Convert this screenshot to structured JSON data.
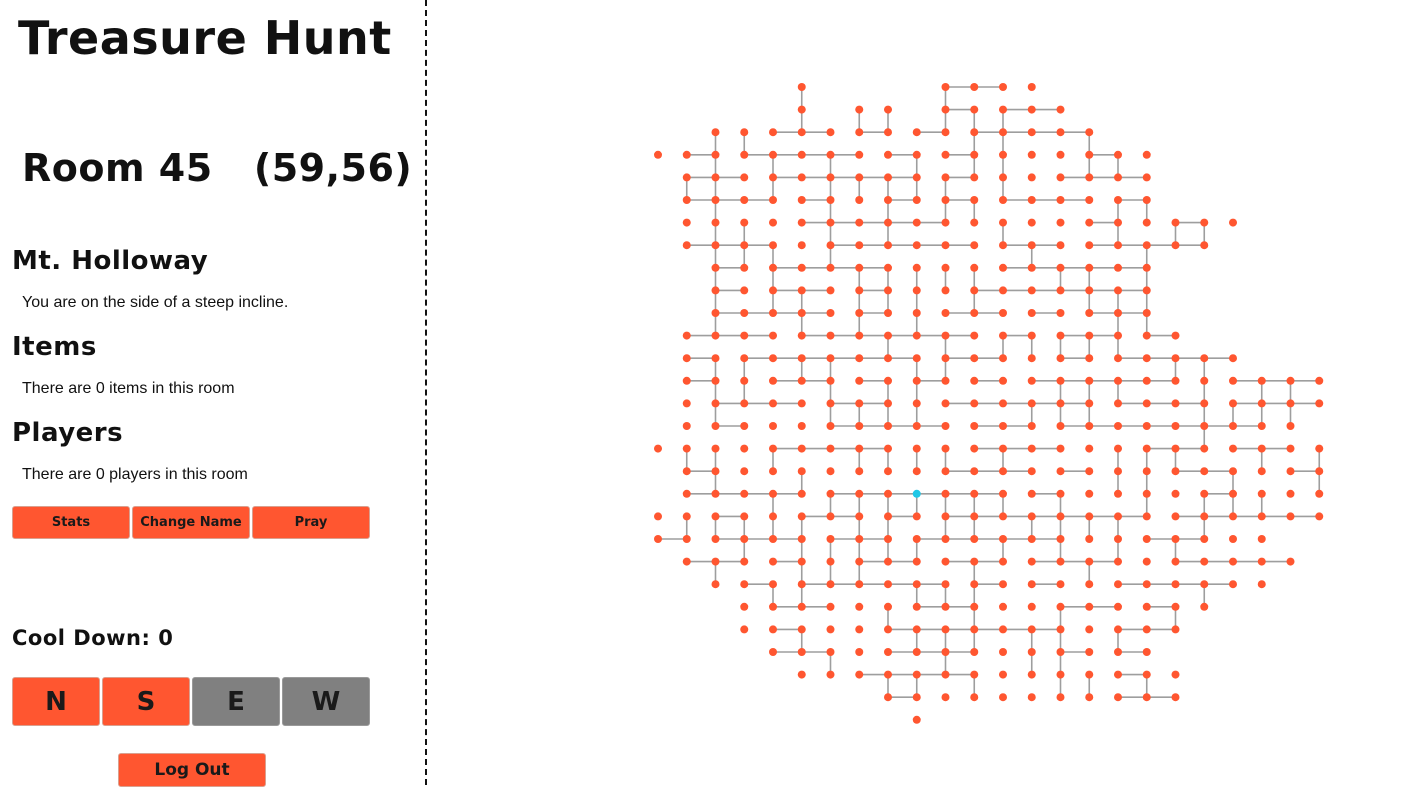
{
  "app": {
    "title": "Treasure Hunt"
  },
  "room": {
    "heading": "Room 45   (59,56)",
    "name": "Mt. Holloway",
    "description": "You are on the side of a steep incline."
  },
  "items": {
    "heading": "Items",
    "text": "There are 0 items in this room"
  },
  "players": {
    "heading": "Players",
    "text": "There are 0 players in this room"
  },
  "actions": {
    "stats_label": "Stats",
    "change_name_label": "Change Name",
    "pray_label": "Pray"
  },
  "cooldown": {
    "text": "Cool Down: 0"
  },
  "directions": {
    "n_label": "N",
    "s_label": "S",
    "e_label": "E",
    "w_label": "W",
    "n_enabled": true,
    "s_enabled": true,
    "e_enabled": false,
    "w_enabled": false
  },
  "logout": {
    "label": "Log Out"
  },
  "map": {
    "node_color": "#ff5630",
    "current_color": "#1fc7e6",
    "edge_color": "#9e9e9e"
  }
}
